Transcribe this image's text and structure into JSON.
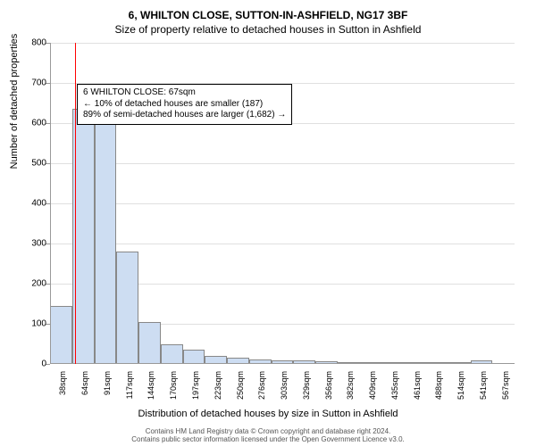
{
  "title_main": "6, WHILTON CLOSE, SUTTON-IN-ASHFIELD, NG17 3BF",
  "title_sub": "Size of property relative to detached houses in Sutton in Ashfield",
  "ylabel": "Number of detached properties",
  "xlabel": "Distribution of detached houses by size in Sutton in Ashfield",
  "footer_line1": "Contains HM Land Registry data © Crown copyright and database right 2024.",
  "footer_line2": "Contains public sector information licensed under the Open Government Licence v3.0.",
  "annotation": {
    "line1": "6 WHILTON CLOSE: 67sqm",
    "line2": "← 10% of detached houses are smaller (187)",
    "line3": "89% of semi-detached houses are larger (1,682) →"
  },
  "chart": {
    "type": "histogram",
    "ymax": 800,
    "ytick_step": 100,
    "bar_fill": "#cdddf2",
    "bar_border": "#888888",
    "grid_color": "#e0e0e0",
    "background_color": "#ffffff",
    "marker_color": "#ff0000",
    "marker_bin_index": 1,
    "marker_position_in_bin": 0.12,
    "title_fontsize": 12,
    "label_fontsize": 11,
    "tick_fontsize": 10,
    "x_labels": [
      "38sqm",
      "64sqm",
      "91sqm",
      "117sqm",
      "144sqm",
      "170sqm",
      "197sqm",
      "223sqm",
      "250sqm",
      "276sqm",
      "303sqm",
      "329sqm",
      "356sqm",
      "382sqm",
      "409sqm",
      "435sqm",
      "461sqm",
      "488sqm",
      "514sqm",
      "541sqm",
      "567sqm"
    ],
    "values": [
      145,
      635,
      625,
      280,
      105,
      50,
      35,
      20,
      15,
      12,
      10,
      8,
      6,
      5,
      4,
      3,
      3,
      2,
      2,
      10,
      0
    ]
  }
}
